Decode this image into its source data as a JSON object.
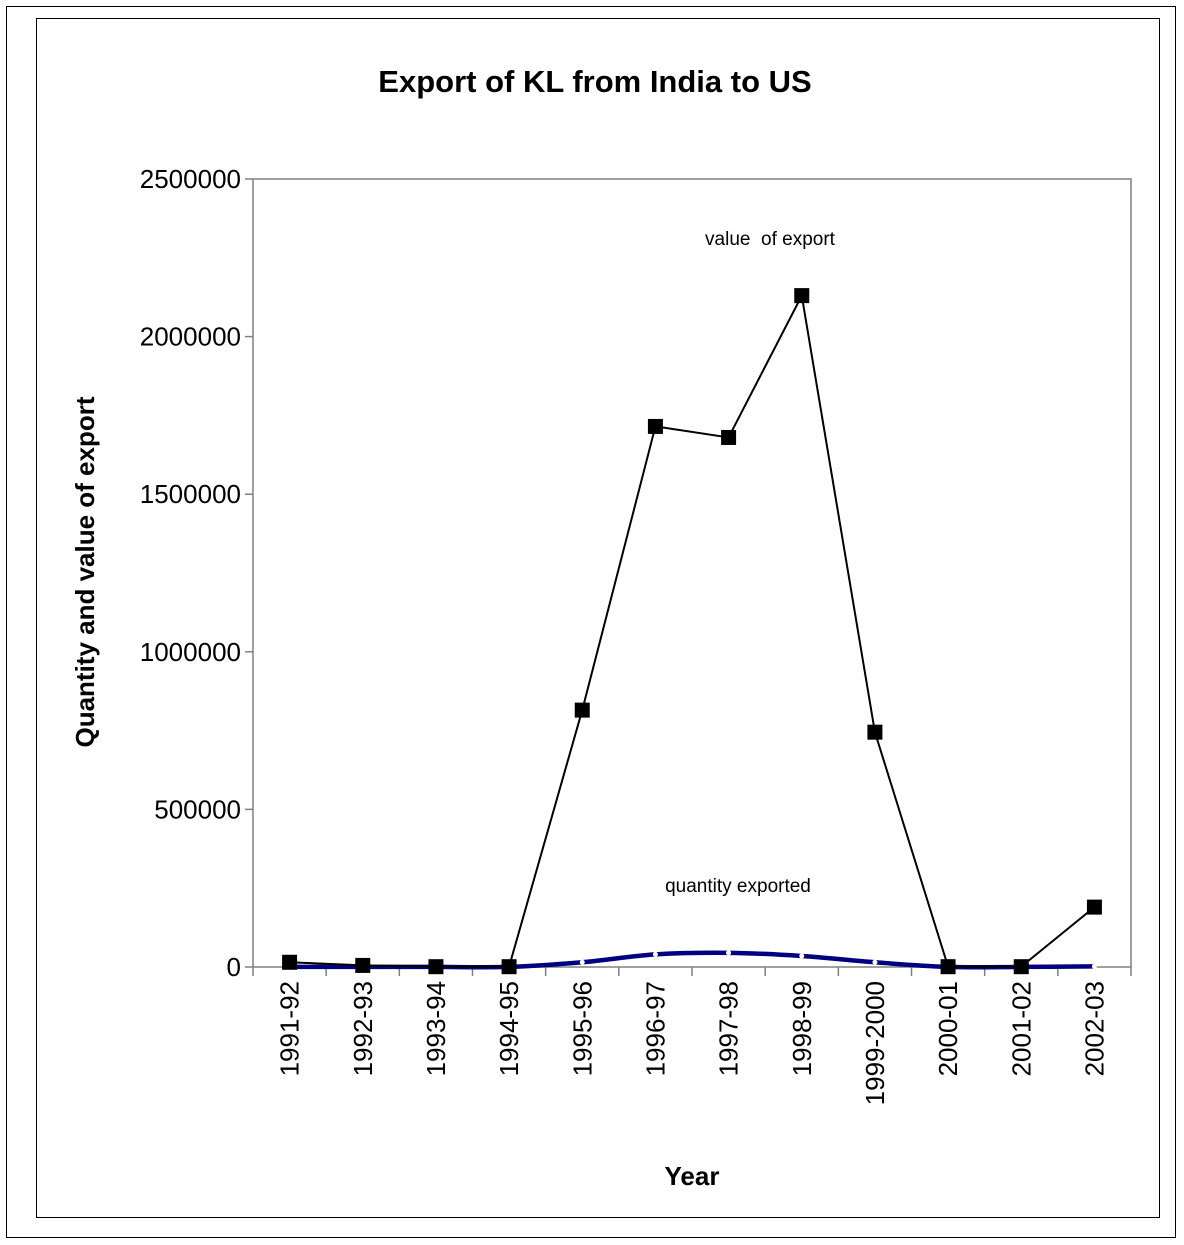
{
  "chart_data": {
    "type": "line",
    "title": "Export of KL from India to US",
    "xlabel": "Year",
    "ylabel": "Quantity and value of export",
    "ylim": [
      0,
      2500000
    ],
    "yticks": [
      0,
      500000,
      1000000,
      1500000,
      2000000,
      2500000
    ],
    "grid": false,
    "categories": [
      "1991-92",
      "1992-93",
      "1993-94",
      "1994-95",
      "1995-96",
      "1996-97",
      "1997-98",
      "1998-99",
      "1999-2000",
      "2000-01",
      "2001-02",
      "2002-03"
    ],
    "series": [
      {
        "name": "value  of export",
        "values": [
          15000,
          5000,
          1000,
          1000,
          815000,
          1715000,
          1680000,
          2130000,
          745000,
          1000,
          1000,
          190000
        ],
        "color": "#000000",
        "marker": "square"
      },
      {
        "name": "quantity exported",
        "values": [
          500,
          300,
          200,
          300,
          15000,
          40000,
          45000,
          35000,
          15000,
          300,
          200,
          2000
        ],
        "color": "#000080",
        "marker": "circle"
      }
    ]
  }
}
